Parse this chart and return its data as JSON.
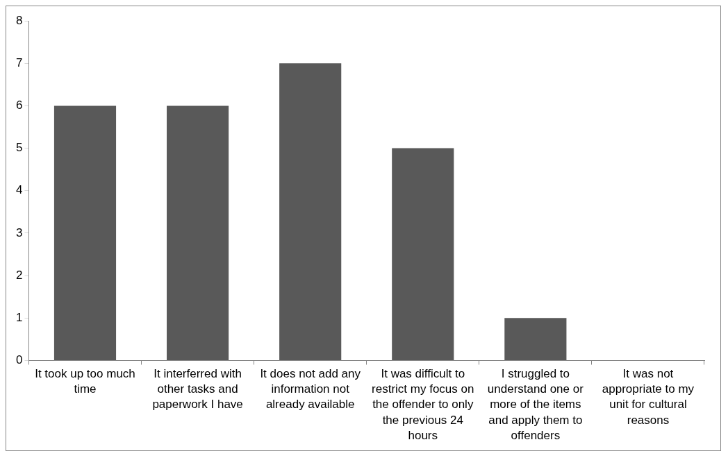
{
  "chart_data": {
    "type": "bar",
    "categories": [
      "It took up too much time",
      "It interferred with other tasks and paperwork I have",
      "It does not add any information not already available",
      "It was difficult to restrict my focus on the offender to only the previous 24 hours",
      "I struggled to understand one or more of the items and apply them to offenders",
      "It was not appropriate to my unit for cultural reasons"
    ],
    "values": [
      6,
      6,
      7,
      5,
      1,
      0
    ],
    "color": "#595959",
    "ylim": [
      0,
      8
    ],
    "yticks": [
      0,
      1,
      2,
      3,
      4,
      5,
      6,
      7,
      8
    ],
    "grid": false,
    "legend": false
  }
}
